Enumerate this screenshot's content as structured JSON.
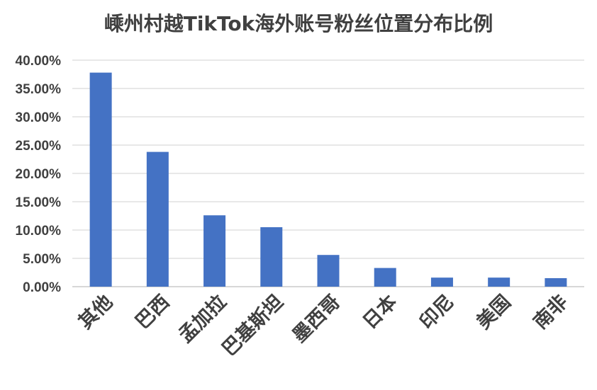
{
  "chart_data": {
    "type": "bar",
    "title": "嵊州村越TikTok海外账号粉丝位置分布比例",
    "categories": [
      "其他",
      "巴西",
      "孟加拉",
      "巴基斯坦",
      "墨西哥",
      "日本",
      "印尼",
      "美国",
      "南非"
    ],
    "values": [
      37.8,
      23.8,
      12.6,
      10.5,
      5.6,
      3.3,
      1.6,
      1.6,
      1.5
    ],
    "yticks": [
      "0.00%",
      "5.00%",
      "10.00%",
      "15.00%",
      "20.00%",
      "25.00%",
      "30.00%",
      "35.00%",
      "40.00%"
    ],
    "ylim": [
      0,
      40
    ],
    "grid": true,
    "bar_color": "#4472C4",
    "grid_color": "#D9D9D9"
  }
}
